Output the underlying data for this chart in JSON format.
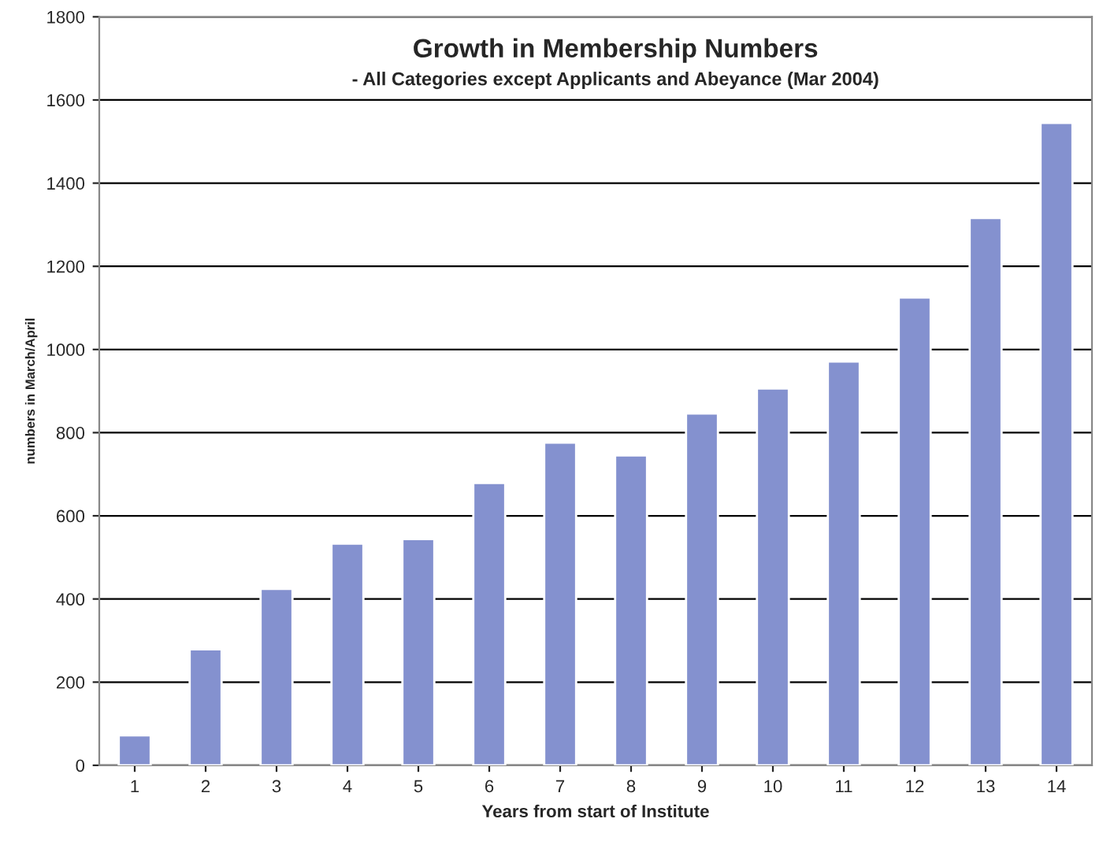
{
  "chart_data": {
    "type": "bar",
    "title": "Growth in Membership Numbers",
    "subtitle": "- All Categories except Applicants and Abeyance (Mar 2004)",
    "xlabel": "Years from start of Institute",
    "ylabel": "numbers in March/April",
    "categories": [
      "1",
      "2",
      "3",
      "4",
      "5",
      "6",
      "7",
      "8",
      "9",
      "10",
      "11",
      "12",
      "13",
      "14"
    ],
    "values": [
      72,
      279,
      424,
      533,
      544,
      679,
      776,
      745,
      846,
      906,
      971,
      1125,
      1316,
      1545
    ],
    "color": "#8491cf",
    "ylim": [
      0,
      1800
    ],
    "yticks": [
      0,
      200,
      400,
      600,
      800,
      1000,
      1200,
      1400,
      1600,
      1800
    ],
    "grid": "y",
    "legend": false
  }
}
